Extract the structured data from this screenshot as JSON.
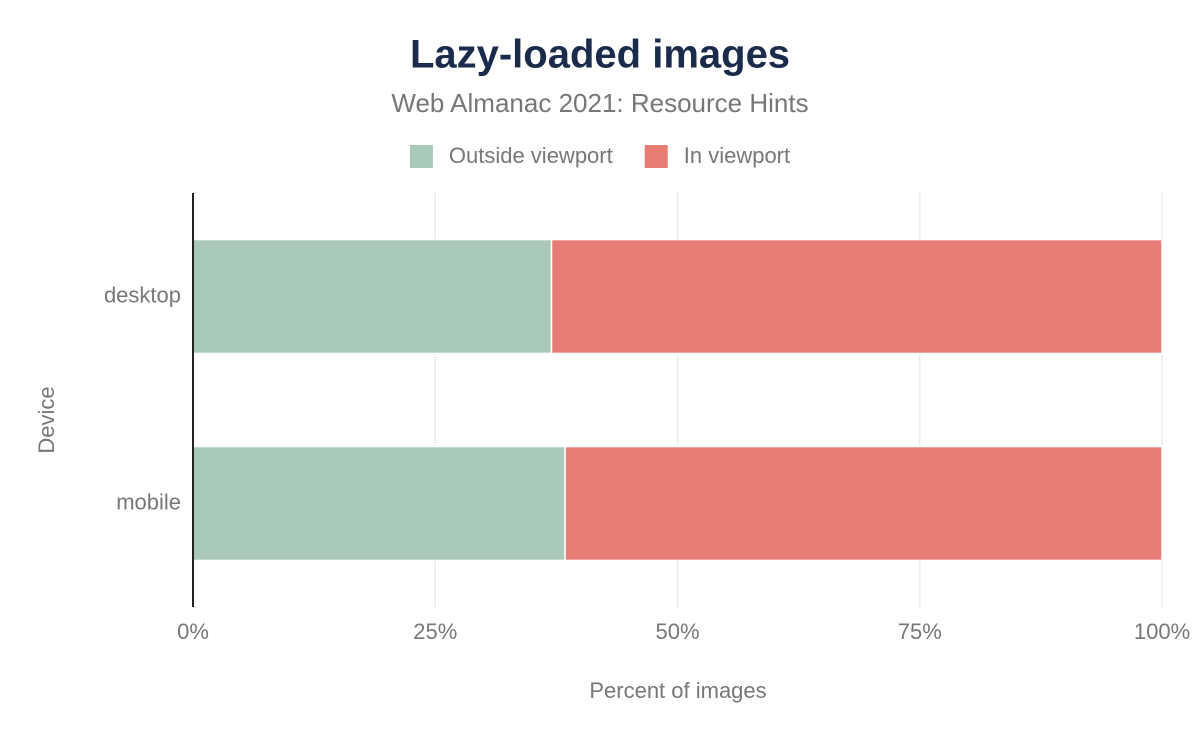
{
  "chart_data": {
    "type": "stacked_barh",
    "title": "Lazy-loaded images",
    "subtitle": "Web Almanac 2021: Resource Hints",
    "x_label": "Percent of images",
    "y_label": "Device",
    "categories": [
      "desktop",
      "mobile"
    ],
    "series": [
      {
        "name": "Outside viewport",
        "color": "#a8c9b8",
        "values": [
          37.0,
          38.4
        ]
      },
      {
        "name": "In viewport",
        "color": "#e67c73",
        "values": [
          63.0,
          61.6
        ]
      }
    ],
    "xlim": [
      0,
      100
    ],
    "xticks": [
      {
        "value": 0,
        "label": "0%"
      },
      {
        "value": 25,
        "label": "25%"
      },
      {
        "value": 50,
        "label": "50%"
      },
      {
        "value": 75,
        "label": "75%"
      },
      {
        "value": 100,
        "label": "100%"
      }
    ],
    "grid": true,
    "legend": "top"
  }
}
